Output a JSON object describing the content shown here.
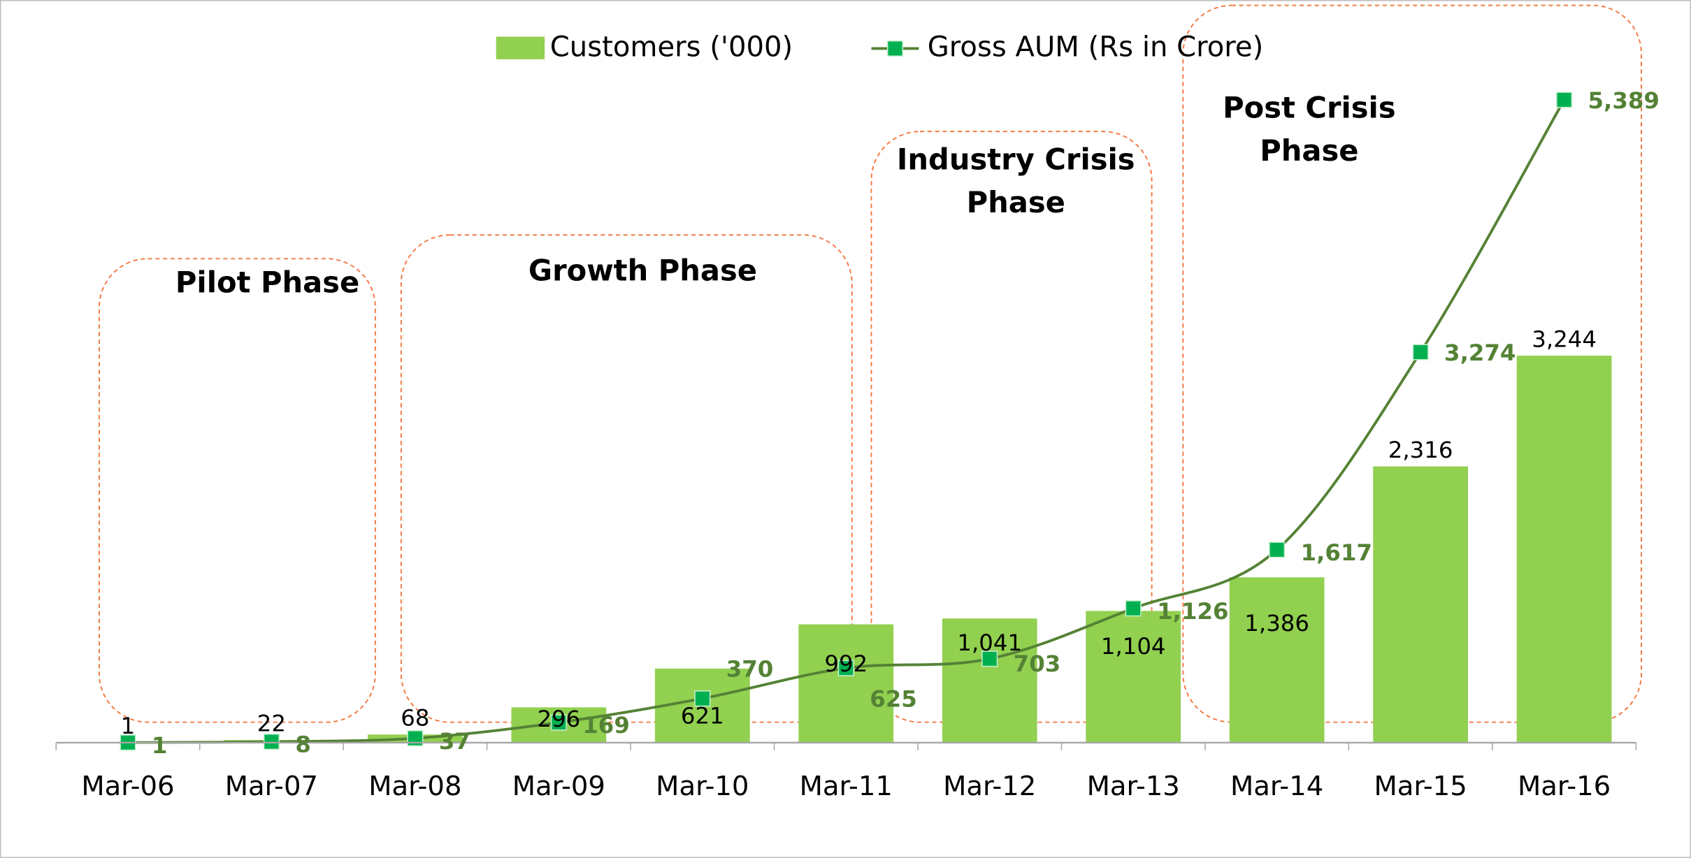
{
  "chart_data": {
    "type": "bar-line",
    "categories": [
      "Mar-06",
      "Mar-07",
      "Mar-08",
      "Mar-09",
      "Mar-10",
      "Mar-11",
      "Mar-12",
      "Mar-13",
      "Mar-14",
      "Mar-15",
      "Mar-16"
    ],
    "series": [
      {
        "name": "Customers ('000)",
        "type": "bar",
        "color": "#92d050",
        "values": [
          1,
          22,
          68,
          296,
          621,
          992,
          1041,
          1104,
          1386,
          2316,
          3244
        ],
        "value_labels": [
          "1",
          "22",
          "68",
          "296",
          "621",
          "992",
          "1,041",
          "1,104",
          "1,386",
          "2,316",
          "3,244"
        ]
      },
      {
        "name": "Gross AUM (Rs in Crore)",
        "type": "line",
        "axis": "y2",
        "color": "#548235",
        "marker_color": "#00b050",
        "values": [
          1,
          8,
          37,
          169,
          370,
          625,
          703,
          1126,
          1617,
          3274,
          5389
        ],
        "value_labels": [
          "1",
          "8",
          "37",
          "169",
          "370",
          "625",
          "703",
          "1,126",
          "1,617",
          "3,274",
          "5,389"
        ]
      }
    ],
    "ylim": [
      0,
      6000
    ],
    "y2lim": [
      0,
      6000
    ],
    "legend": "top",
    "annotations": [
      {
        "lines": [
          "Pilot Phase"
        ]
      },
      {
        "lines": [
          "Growth Phase"
        ]
      },
      {
        "lines": [
          "Industry Crisis",
          "Phase"
        ]
      },
      {
        "lines": [
          "Post Crisis",
          "Phase"
        ]
      }
    ]
  }
}
